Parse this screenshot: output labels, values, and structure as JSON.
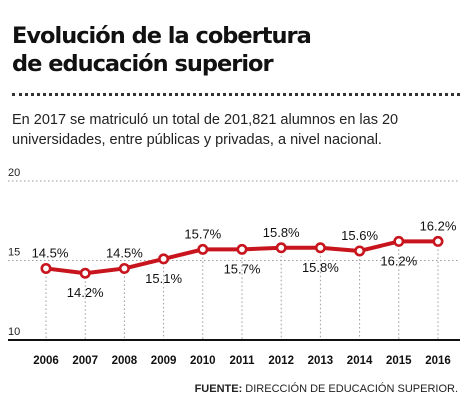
{
  "header": {
    "title_line1": "Evolución de la cobertura",
    "title_line2": "de educación superior",
    "subtitle": "En 2017 se matriculó un total de 201,821 alumnos en las 20 universidades, entre públicas y privadas, a nivel nacional."
  },
  "footer": {
    "source_label": "FUENTE:",
    "source_text": " DIRECCIÓN DE EDUCACIÓN SUPERIOR."
  },
  "colors": {
    "line": "#c8151d",
    "marker_fill": "#ffffff",
    "grid": "#9a9a9a",
    "axis": "#111111"
  },
  "chart_data": {
    "type": "line",
    "categories": [
      "2006",
      "2007",
      "2008",
      "2009",
      "2010",
      "2011",
      "2012",
      "2013",
      "2014",
      "2015",
      "2016"
    ],
    "values": [
      14.5,
      14.2,
      14.5,
      15.1,
      15.7,
      15.7,
      15.8,
      15.8,
      15.6,
      16.2,
      16.2
    ],
    "value_labels": [
      "14.5%",
      "14.2%",
      "14.5%",
      "15.1%",
      "15.7%",
      "15.7%",
      "15.8%",
      "15.8%",
      "15.6%",
      "16.2%",
      "16.2%"
    ],
    "label_position": [
      "above",
      "below",
      "above",
      "below",
      "above",
      "below",
      "above",
      "below",
      "above",
      "below",
      "above"
    ],
    "yticks": [
      "20",
      "15",
      "10"
    ],
    "ytick_values": [
      20,
      15,
      10
    ],
    "ylim": [
      10,
      20
    ],
    "grid": true,
    "title": "",
    "xlabel": "",
    "ylabel": ""
  }
}
